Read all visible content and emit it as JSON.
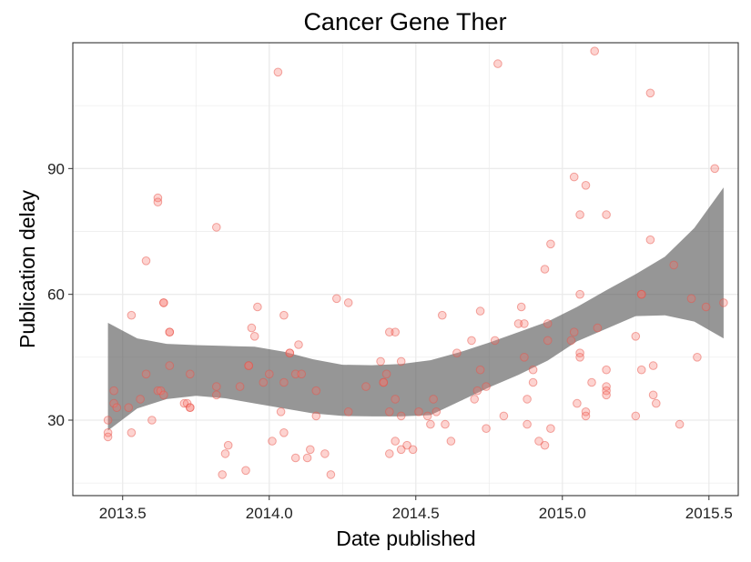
{
  "chart_data": {
    "type": "scatter",
    "title": "Cancer Gene Ther",
    "xlabel": "Date published",
    "ylabel": "Publication delay",
    "xlim": [
      2013.33,
      2015.6
    ],
    "ylim": [
      12,
      120
    ],
    "x_ticks": [
      2013.5,
      2014.0,
      2014.5,
      2015.0,
      2015.5
    ],
    "x_tick_labels": [
      "2013.5",
      "2014.0",
      "2014.5",
      "2015.0",
      "2015.5"
    ],
    "y_ticks": [
      30,
      60,
      90
    ],
    "y_tick_labels": [
      "30",
      "60",
      "90"
    ],
    "grid": true,
    "colors": {
      "points_fill": "#f8766d",
      "points_stroke": "#e8534a",
      "band_fill": "#555555",
      "grid": "#ebebeb",
      "panel_border": "#333333"
    },
    "points": [
      [
        2013.45,
        30
      ],
      [
        2013.45,
        27
      ],
      [
        2013.45,
        26
      ],
      [
        2013.47,
        37
      ],
      [
        2013.47,
        34
      ],
      [
        2013.48,
        33
      ],
      [
        2013.52,
        33
      ],
      [
        2013.53,
        55
      ],
      [
        2013.53,
        27
      ],
      [
        2013.56,
        35
      ],
      [
        2013.58,
        41
      ],
      [
        2013.58,
        68
      ],
      [
        2013.6,
        30
      ],
      [
        2013.62,
        83
      ],
      [
        2013.62,
        82
      ],
      [
        2013.62,
        37
      ],
      [
        2013.63,
        37
      ],
      [
        2013.64,
        36
      ],
      [
        2013.64,
        58
      ],
      [
        2013.64,
        58
      ],
      [
        2013.66,
        51
      ],
      [
        2013.66,
        51
      ],
      [
        2013.66,
        43
      ],
      [
        2013.71,
        34
      ],
      [
        2013.72,
        34
      ],
      [
        2013.73,
        41
      ],
      [
        2013.73,
        33
      ],
      [
        2013.73,
        33
      ],
      [
        2013.82,
        76
      ],
      [
        2013.82,
        38
      ],
      [
        2013.82,
        36
      ],
      [
        2013.84,
        17
      ],
      [
        2013.85,
        22
      ],
      [
        2013.86,
        24
      ],
      [
        2013.9,
        38
      ],
      [
        2013.92,
        18
      ],
      [
        2013.93,
        43
      ],
      [
        2013.93,
        43
      ],
      [
        2013.94,
        52
      ],
      [
        2013.95,
        50
      ],
      [
        2013.96,
        57
      ],
      [
        2013.98,
        39
      ],
      [
        2014.0,
        41
      ],
      [
        2014.01,
        25
      ],
      [
        2014.03,
        113
      ],
      [
        2014.04,
        32
      ],
      [
        2014.05,
        55
      ],
      [
        2014.05,
        39
      ],
      [
        2014.05,
        27
      ],
      [
        2014.07,
        46
      ],
      [
        2014.07,
        46
      ],
      [
        2014.09,
        41
      ],
      [
        2014.09,
        21
      ],
      [
        2014.1,
        48
      ],
      [
        2014.11,
        41
      ],
      [
        2014.13,
        21
      ],
      [
        2014.14,
        23
      ],
      [
        2014.16,
        37
      ],
      [
        2014.16,
        31
      ],
      [
        2014.19,
        22
      ],
      [
        2014.21,
        17
      ],
      [
        2014.23,
        59
      ],
      [
        2014.27,
        58
      ],
      [
        2014.27,
        32
      ],
      [
        2014.33,
        38
      ],
      [
        2014.38,
        44
      ],
      [
        2014.39,
        39
      ],
      [
        2014.39,
        39
      ],
      [
        2014.4,
        41
      ],
      [
        2014.41,
        51
      ],
      [
        2014.41,
        22
      ],
      [
        2014.41,
        32
      ],
      [
        2014.43,
        51
      ],
      [
        2014.43,
        35
      ],
      [
        2014.43,
        25
      ],
      [
        2014.45,
        44
      ],
      [
        2014.45,
        23
      ],
      [
        2014.45,
        31
      ],
      [
        2014.47,
        24
      ],
      [
        2014.49,
        23
      ],
      [
        2014.51,
        32
      ],
      [
        2014.54,
        31
      ],
      [
        2014.55,
        29
      ],
      [
        2014.56,
        35
      ],
      [
        2014.57,
        32
      ],
      [
        2014.59,
        55
      ],
      [
        2014.6,
        29
      ],
      [
        2014.62,
        25
      ],
      [
        2014.64,
        46
      ],
      [
        2014.69,
        49
      ],
      [
        2014.7,
        35
      ],
      [
        2014.71,
        37
      ],
      [
        2014.72,
        56
      ],
      [
        2014.72,
        42
      ],
      [
        2014.74,
        38
      ],
      [
        2014.74,
        28
      ],
      [
        2014.77,
        49
      ],
      [
        2014.78,
        115
      ],
      [
        2014.8,
        31
      ],
      [
        2014.85,
        53
      ],
      [
        2014.86,
        57
      ],
      [
        2014.87,
        53
      ],
      [
        2014.87,
        45
      ],
      [
        2014.88,
        35
      ],
      [
        2014.88,
        29
      ],
      [
        2014.9,
        39
      ],
      [
        2014.9,
        42
      ],
      [
        2014.92,
        25
      ],
      [
        2014.94,
        24
      ],
      [
        2014.94,
        66
      ],
      [
        2014.95,
        53
      ],
      [
        2014.95,
        49
      ],
      [
        2014.96,
        72
      ],
      [
        2014.96,
        28
      ],
      [
        2015.03,
        49
      ],
      [
        2015.04,
        88
      ],
      [
        2015.04,
        51
      ],
      [
        2015.05,
        34
      ],
      [
        2015.06,
        46
      ],
      [
        2015.06,
        45
      ],
      [
        2015.06,
        79
      ],
      [
        2015.06,
        60
      ],
      [
        2015.08,
        86
      ],
      [
        2015.08,
        32
      ],
      [
        2015.08,
        31
      ],
      [
        2015.1,
        39
      ],
      [
        2015.11,
        118
      ],
      [
        2015.12,
        52
      ],
      [
        2015.15,
        79
      ],
      [
        2015.15,
        42
      ],
      [
        2015.15,
        38
      ],
      [
        2015.15,
        37
      ],
      [
        2015.15,
        36
      ],
      [
        2015.25,
        50
      ],
      [
        2015.25,
        31
      ],
      [
        2015.27,
        60
      ],
      [
        2015.27,
        60
      ],
      [
        2015.27,
        42
      ],
      [
        2015.3,
        108
      ],
      [
        2015.3,
        73
      ],
      [
        2015.31,
        43
      ],
      [
        2015.31,
        36
      ],
      [
        2015.32,
        34
      ],
      [
        2015.38,
        67
      ],
      [
        2015.4,
        29
      ],
      [
        2015.44,
        59
      ],
      [
        2015.46,
        45
      ],
      [
        2015.49,
        57
      ],
      [
        2015.52,
        90
      ],
      [
        2015.55,
        58
      ]
    ],
    "smooth": {
      "x": [
        2013.45,
        2013.55,
        2013.65,
        2013.75,
        2013.85,
        2013.95,
        2014.05,
        2014.15,
        2014.25,
        2014.35,
        2014.45,
        2014.55,
        2014.65,
        2014.75,
        2014.85,
        2014.95,
        2015.05,
        2015.15,
        2015.25,
        2015.35,
        2015.45,
        2015.55
      ],
      "upper": [
        53.2,
        49.5,
        48.2,
        47.9,
        47.7,
        47.5,
        46.3,
        44.5,
        43.2,
        43.1,
        43.4,
        44.3,
        46.2,
        48.5,
        51.0,
        53.5,
        57.0,
        61.0,
        64.8,
        69.0,
        75.8,
        85.5
      ],
      "lower": [
        27.5,
        32.8,
        35.0,
        35.8,
        35.2,
        34.0,
        32.8,
        31.6,
        31.0,
        30.9,
        30.9,
        31.2,
        34.5,
        37.8,
        40.8,
        44.2,
        48.8,
        51.8,
        54.8,
        55.0,
        53.5,
        49.5
      ]
    }
  }
}
